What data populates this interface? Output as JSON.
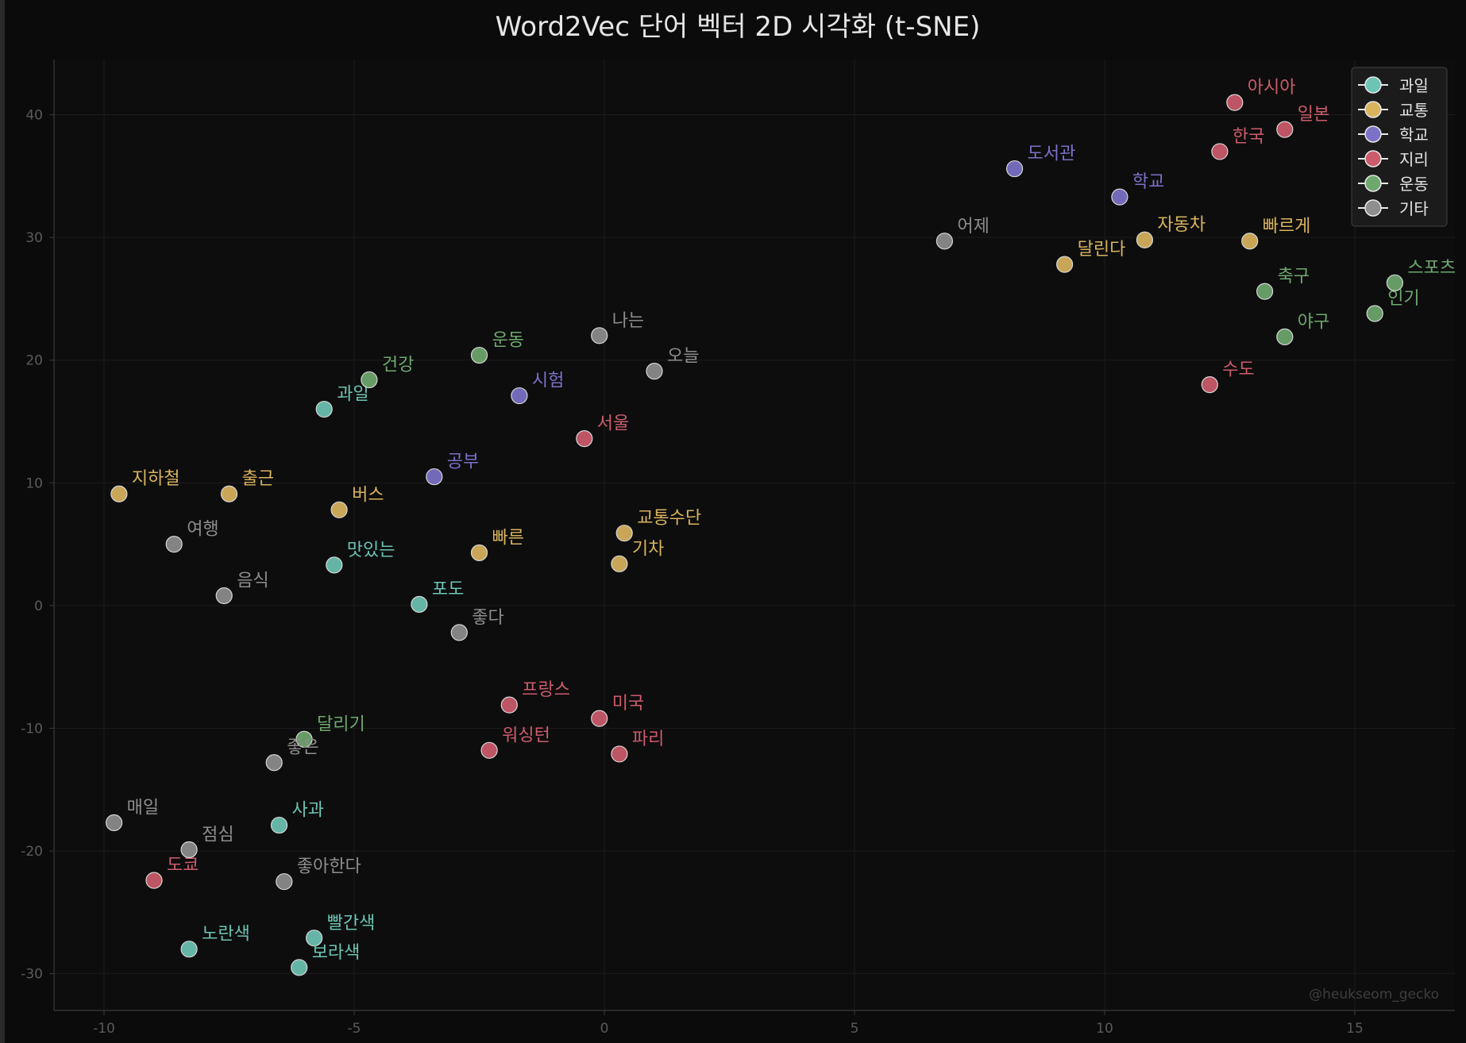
{
  "chart_data": {
    "type": "scatter",
    "title": "Word2Vec 단어 벡터 2D 시각화 (t-SNE)",
    "xlabel": "",
    "ylabel": "",
    "xlim": [
      -11,
      17
    ],
    "ylim": [
      -33,
      44.5
    ],
    "xticks": [
      -10,
      -5,
      0,
      5,
      10,
      15
    ],
    "yticks": [
      -30,
      -20,
      -10,
      0,
      10,
      20,
      30,
      40
    ],
    "grid": true,
    "legend_position": "top-right",
    "series": [
      {
        "name": "과일",
        "color": "#6cc4b4",
        "points": [
          {
            "label": "과일",
            "x": -5.6,
            "y": 16.0
          },
          {
            "label": "맛있는",
            "x": -5.4,
            "y": 3.3
          },
          {
            "label": "포도",
            "x": -3.7,
            "y": 0.1
          },
          {
            "label": "사과",
            "x": -6.5,
            "y": -17.9
          },
          {
            "label": "노란색",
            "x": -8.3,
            "y": -28.0
          },
          {
            "label": "빨간색",
            "x": -5.8,
            "y": -27.1
          },
          {
            "label": "보라색",
            "x": -6.1,
            "y": -29.5
          }
        ]
      },
      {
        "name": "교통",
        "color": "#d9b45e",
        "points": [
          {
            "label": "지하철",
            "x": -9.7,
            "y": 9.1
          },
          {
            "label": "출근",
            "x": -7.5,
            "y": 9.1
          },
          {
            "label": "버스",
            "x": -5.3,
            "y": 7.8
          },
          {
            "label": "빠른",
            "x": -2.5,
            "y": 4.3
          },
          {
            "label": "교통수단",
            "x": 0.4,
            "y": 5.9
          },
          {
            "label": "기차",
            "x": 0.3,
            "y": 3.4
          },
          {
            "label": "달린다",
            "x": 9.2,
            "y": 27.8
          },
          {
            "label": "자동차",
            "x": 10.8,
            "y": 29.8
          },
          {
            "label": "빠르게",
            "x": 12.9,
            "y": 29.7
          }
        ]
      },
      {
        "name": "학교",
        "color": "#7b72c8",
        "points": [
          {
            "label": "공부",
            "x": -3.4,
            "y": 10.5
          },
          {
            "label": "시험",
            "x": -1.7,
            "y": 17.1
          },
          {
            "label": "도서관",
            "x": 8.2,
            "y": 35.6
          },
          {
            "label": "학교",
            "x": 10.3,
            "y": 33.3
          }
        ]
      },
      {
        "name": "지리",
        "color": "#cc5c6c",
        "points": [
          {
            "label": "서울",
            "x": -0.4,
            "y": 13.6
          },
          {
            "label": "프랑스",
            "x": -1.9,
            "y": -8.1
          },
          {
            "label": "미국",
            "x": -0.1,
            "y": -9.2
          },
          {
            "label": "워싱턴",
            "x": -2.3,
            "y": -11.8
          },
          {
            "label": "파리",
            "x": 0.3,
            "y": -12.1
          },
          {
            "label": "도쿄",
            "x": -9.0,
            "y": -22.4
          },
          {
            "label": "아시아",
            "x": 12.6,
            "y": 41.0
          },
          {
            "label": "일본",
            "x": 13.6,
            "y": 38.8
          },
          {
            "label": "한국",
            "x": 12.3,
            "y": 37.0
          },
          {
            "label": "수도",
            "x": 12.1,
            "y": 18.0
          }
        ]
      },
      {
        "name": "운동",
        "color": "#6ea86e",
        "points": [
          {
            "label": "건강",
            "x": -4.7,
            "y": 18.4
          },
          {
            "label": "운동",
            "x": -2.5,
            "y": 20.4
          },
          {
            "label": "달리기",
            "x": -6.0,
            "y": -10.9
          },
          {
            "label": "축구",
            "x": 13.2,
            "y": 25.6
          },
          {
            "label": "야구",
            "x": 13.6,
            "y": 21.9
          },
          {
            "label": "인기",
            "x": 15.4,
            "y": 23.8
          },
          {
            "label": "스포츠",
            "x": 15.8,
            "y": 26.3
          }
        ]
      },
      {
        "name": "기타",
        "color": "#8e8e8e",
        "points": [
          {
            "label": "나는",
            "x": -0.1,
            "y": 22.0
          },
          {
            "label": "오늘",
            "x": 1.0,
            "y": 19.1
          },
          {
            "label": "여행",
            "x": -8.6,
            "y": 5.0
          },
          {
            "label": "음식",
            "x": -7.6,
            "y": 0.8
          },
          {
            "label": "좋다",
            "x": -2.9,
            "y": -2.2
          },
          {
            "label": "좋은",
            "x": -6.6,
            "y": -12.8
          },
          {
            "label": "매일",
            "x": -9.8,
            "y": -17.7
          },
          {
            "label": "점심",
            "x": -8.3,
            "y": -19.9
          },
          {
            "label": "좋아한다",
            "x": -6.4,
            "y": -22.5
          },
          {
            "label": "어제",
            "x": 6.8,
            "y": 29.7
          }
        ]
      }
    ]
  },
  "watermark": "@heukseom_gecko"
}
